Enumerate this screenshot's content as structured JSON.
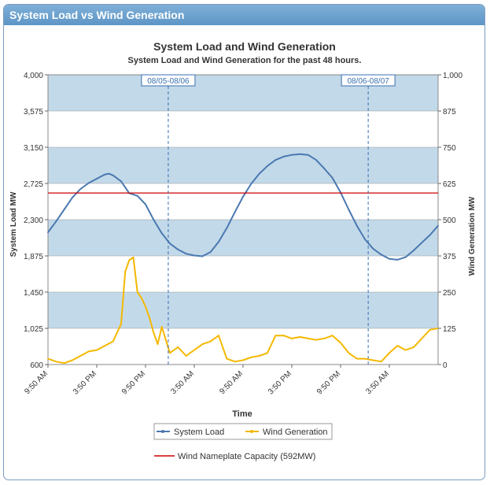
{
  "panel": {
    "title": "System Load vs Wind Generation"
  },
  "chart_data": {
    "type": "line",
    "title": "System Load and Wind Generation",
    "subtitle": "System Load and Wind Generation for the past 48 hours.",
    "xlabel": "Time",
    "ylabel_left": "System Load MW",
    "ylabel_right": "Wind Generation MW",
    "ylim_left": [
      600,
      4000
    ],
    "ylim_right": [
      0,
      1000
    ],
    "yticks_left": [
      "600",
      "1,025",
      "1,450",
      "1,875",
      "2,300",
      "2,725",
      "3,150",
      "3,575",
      "4,000"
    ],
    "yticks_right": [
      "0",
      "125",
      "250",
      "375",
      "500",
      "625",
      "750",
      "875",
      "1,000"
    ],
    "x_range_hours": [
      0,
      48
    ],
    "xticks": [
      {
        "h": 0,
        "label": "9:50 AM"
      },
      {
        "h": 6,
        "label": "3:50 PM"
      },
      {
        "h": 12,
        "label": "9:50 PM"
      },
      {
        "h": 18,
        "label": "3:50 AM"
      },
      {
        "h": 24,
        "label": "9:50 AM"
      },
      {
        "h": 30,
        "label": "3:50 PM"
      },
      {
        "h": 36,
        "label": "9:50 PM"
      },
      {
        "h": 42,
        "label": "3:50 AM"
      }
    ],
    "day_markers": [
      {
        "h": 14.8,
        "label": "08/05-08/06"
      },
      {
        "h": 39.4,
        "label": "08/06-08/07"
      }
    ],
    "grid": true,
    "legend": "bottom-center",
    "series": [
      {
        "name": "System Load",
        "axis": "left",
        "color": "#4a78b0",
        "x": [
          0,
          1,
          2,
          3,
          4,
          5,
          6,
          7,
          7.5,
          8,
          9,
          10,
          11,
          12,
          13,
          14,
          15,
          16,
          17,
          18,
          19,
          20,
          21,
          22,
          23,
          24,
          25,
          26,
          27,
          28,
          29,
          30,
          31,
          32,
          33,
          34,
          35,
          36,
          37,
          38,
          39,
          40,
          41,
          42,
          43,
          44,
          45,
          46,
          47,
          48
        ],
        "values": [
          2150,
          2280,
          2420,
          2560,
          2660,
          2730,
          2780,
          2830,
          2840,
          2820,
          2750,
          2610,
          2580,
          2480,
          2300,
          2140,
          2020,
          1950,
          1900,
          1880,
          1870,
          1920,
          2040,
          2200,
          2390,
          2570,
          2720,
          2840,
          2930,
          3000,
          3040,
          3060,
          3070,
          3060,
          3000,
          2900,
          2790,
          2620,
          2420,
          2230,
          2070,
          1960,
          1890,
          1840,
          1830,
          1860,
          1940,
          2030,
          2120,
          2230
        ]
      },
      {
        "name": "Wind Generation",
        "axis": "right",
        "color": "#f5b800",
        "x": [
          0,
          1,
          2,
          3,
          4,
          5,
          6,
          7,
          8,
          9,
          9.5,
          10,
          10.5,
          11,
          11.5,
          12,
          12.5,
          13,
          13.5,
          14,
          15,
          16,
          17,
          18,
          19,
          20,
          21,
          22,
          23,
          24,
          25,
          26,
          27,
          28,
          29,
          30,
          31,
          32,
          33,
          34,
          35,
          36,
          37,
          38,
          39,
          40,
          41,
          42,
          43,
          44,
          45,
          46,
          47,
          48
        ],
        "values": [
          20,
          10,
          5,
          15,
          30,
          45,
          50,
          65,
          80,
          140,
          320,
          360,
          370,
          250,
          230,
          200,
          160,
          110,
          70,
          130,
          40,
          60,
          30,
          50,
          70,
          80,
          100,
          20,
          10,
          15,
          25,
          30,
          40,
          100,
          100,
          90,
          95,
          90,
          85,
          90,
          100,
          75,
          40,
          20,
          20,
          15,
          10,
          40,
          65,
          50,
          60,
          90,
          120,
          125
        ]
      }
    ],
    "reference_line": {
      "name": "Wind Nameplate Capacity (592MW)",
      "axis": "right",
      "value": 592,
      "color": "#cc0000"
    }
  }
}
